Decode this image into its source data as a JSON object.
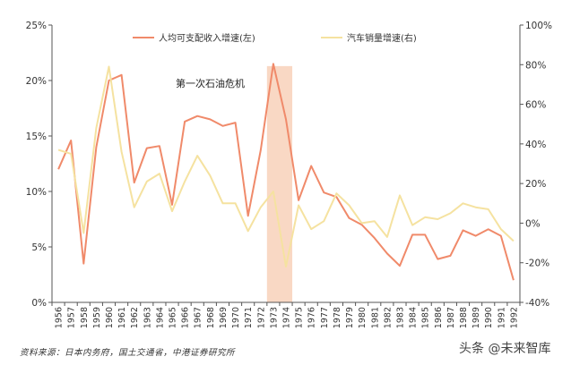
{
  "chart_data": {
    "type": "line",
    "title": "",
    "x": [
      "1956",
      "1957",
      "1958",
      "1959",
      "1960",
      "1961",
      "1962",
      "1963",
      "1964",
      "1965",
      "1966",
      "1967",
      "1968",
      "1969",
      "1970",
      "1971",
      "1972",
      "1973",
      "1974",
      "1975",
      "1976",
      "1977",
      "1978",
      "1979",
      "1980",
      "1981",
      "1982",
      "1983",
      "1984",
      "1985",
      "1986",
      "1987",
      "1988",
      "1989",
      "1990",
      "1991",
      "1992"
    ],
    "y_left_ticks": [
      "0%",
      "5%",
      "10%",
      "15%",
      "20%",
      "25%"
    ],
    "y_right_ticks": [
      "-40%",
      "-20%",
      "0%",
      "20%",
      "40%",
      "60%",
      "80%",
      "100%"
    ],
    "y_left_range": [
      0,
      25
    ],
    "y_right_range": [
      -40,
      100
    ],
    "series": [
      {
        "name": "人均可支配收入增速(左)",
        "axis": "left",
        "color": "#f08a6a",
        "values": [
          12.0,
          14.6,
          3.5,
          14.0,
          20.0,
          20.5,
          10.8,
          13.9,
          14.1,
          8.8,
          16.3,
          16.8,
          16.5,
          15.9,
          16.2,
          7.8,
          13.7,
          21.5,
          16.5,
          9.2,
          12.3,
          9.9,
          9.5,
          7.6,
          7.0,
          5.8,
          4.4,
          3.3,
          6.1,
          6.1,
          3.9,
          4.2,
          6.5,
          6.0,
          6.6,
          6.0,
          2.0
        ]
      },
      {
        "name": "汽车销量增速(右)",
        "axis": "right",
        "color": "#f5e2a0",
        "values": [
          37.0,
          35.0,
          -5.0,
          48.0,
          79.0,
          36.0,
          8.0,
          21.0,
          25.0,
          6.0,
          21.0,
          34.0,
          24.0,
          10.0,
          10.0,
          -4.0,
          8.0,
          16.0,
          -22.0,
          9.0,
          -3.0,
          1.0,
          15.0,
          9.0,
          0.0,
          1.0,
          -7.0,
          14.0,
          -1.0,
          3.0,
          2.0,
          5.0,
          10.0,
          8.0,
          7.0,
          -3.0,
          -9.0
        ]
      }
    ],
    "shaded_region": {
      "from": "1973",
      "to": "1974",
      "color": "#f9d8c4"
    },
    "annotations": [
      {
        "text": "第一次石油危机",
        "x": "1960"
      }
    ],
    "legend_placement": "top",
    "grid": false
  },
  "source_text": "资料来源：日本内务府，国土交通省，中港证券研究所",
  "watermark_text": "头条 @未来智库"
}
